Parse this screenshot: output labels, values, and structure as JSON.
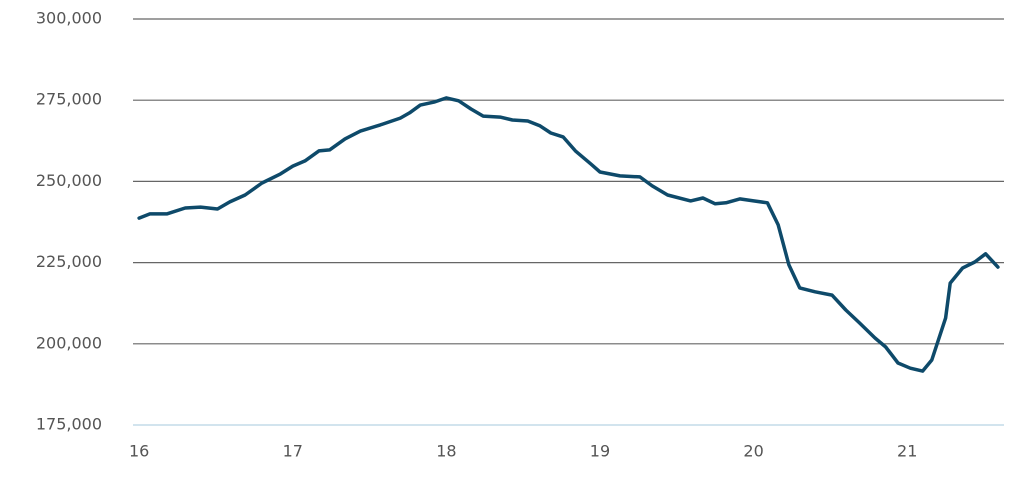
{
  "chart_data": {
    "type": "line",
    "x": [
      16.0,
      16.07,
      16.18,
      16.3,
      16.4,
      16.51,
      16.59,
      16.69,
      16.8,
      16.92,
      17.0,
      17.08,
      17.17,
      17.24,
      17.34,
      17.44,
      17.57,
      17.7,
      17.76,
      17.83,
      17.92,
      18.0,
      18.08,
      18.16,
      18.24,
      18.35,
      18.43,
      18.53,
      18.61,
      18.68,
      18.76,
      18.84,
      18.94,
      19.0,
      19.13,
      19.26,
      19.34,
      19.44,
      19.59,
      19.67,
      19.75,
      19.82,
      19.91,
      20.0,
      20.09,
      20.16,
      20.23,
      20.3,
      20.4,
      20.51,
      20.6,
      20.69,
      20.79,
      20.86,
      20.94,
      21.02,
      21.1,
      21.16,
      21.25,
      21.28,
      21.36,
      21.44,
      21.51,
      21.59
    ],
    "series": [
      {
        "color": "#0e4a6a",
        "values": [
          238700,
          240000,
          240000,
          241800,
          242100,
          241500,
          243700,
          245800,
          249500,
          252300,
          254700,
          256300,
          259400,
          259700,
          263100,
          265500,
          267400,
          269500,
          271100,
          273500,
          274400,
          275700,
          274800,
          272300,
          270100,
          269800,
          268900,
          268600,
          267100,
          264900,
          263700,
          259400,
          255400,
          252900,
          251700,
          251400,
          248600,
          245800,
          244000,
          244900,
          243100,
          243400,
          244600,
          244000,
          243400,
          236600,
          224300,
          217200,
          216000,
          215000,
          210400,
          206400,
          201800,
          199000,
          194100,
          192500,
          191600,
          195000,
          207900,
          218700,
          223300,
          225200,
          227700,
          223600
        ]
      }
    ],
    "xlim": [
      15.96,
      21.63
    ],
    "xticks": [
      16,
      17,
      18,
      19,
      20,
      21
    ],
    "ylim": [
      175000,
      300000
    ],
    "yticks": [
      {
        "value": 175000,
        "label": "175,000"
      },
      {
        "value": 200000,
        "label": "200,000"
      },
      {
        "value": 225000,
        "label": "225,000"
      },
      {
        "value": 250000,
        "label": "250,000"
      },
      {
        "value": 275000,
        "label": "275,000"
      },
      {
        "value": 300000,
        "label": "300,000"
      }
    ],
    "grid": true
  }
}
